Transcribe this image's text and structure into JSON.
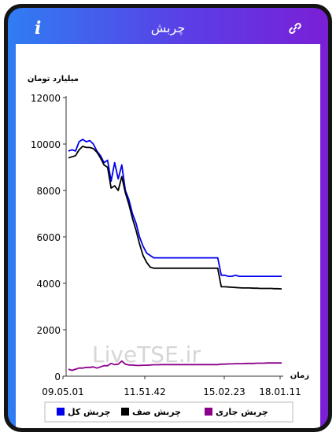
{
  "header": {
    "title": "چربش",
    "info_icon": "i",
    "link_icon": "link-icon"
  },
  "chart_data": {
    "type": "line",
    "unit_label": "میلیارد تومان",
    "xlabel": "زمان",
    "watermark": "LiveTSE.ir",
    "ylim": [
      0,
      12000
    ],
    "yticks": [
      "0",
      "2000",
      "4000",
      "6000",
      "8000",
      "10000",
      "12000"
    ],
    "xticks": [
      "09.05.01",
      "11.51.42",
      "15.02.23",
      "18.01.11"
    ],
    "series": [
      {
        "name": "چربش کل",
        "color": "#0000ee",
        "values": [
          9700,
          9750,
          9700,
          10100,
          10200,
          10100,
          10150,
          10000,
          9700,
          9500,
          9200,
          9300,
          8400,
          9200,
          8500,
          9100,
          8000,
          7600,
          7000,
          6600,
          6000,
          5600,
          5300,
          5200,
          5100,
          5100,
          5100,
          5100,
          5100,
          5100,
          5100,
          5100,
          5100,
          5100,
          5100,
          5100,
          5100,
          5100,
          5100,
          5100,
          5100,
          5100,
          5100,
          4350,
          4350,
          4300,
          4300,
          4350,
          4300,
          4300,
          4300,
          4300,
          4300,
          4300,
          4300,
          4300,
          4300,
          4300,
          4300,
          4300,
          4300
        ]
      },
      {
        "name": "چربش صف",
        "color": "#000000",
        "values": [
          9400,
          9450,
          9500,
          9750,
          9900,
          9850,
          9850,
          9800,
          9650,
          9400,
          9100,
          9000,
          8100,
          8200,
          8000,
          8600,
          7900,
          7400,
          6800,
          6300,
          5700,
          5200,
          4900,
          4700,
          4650,
          4650,
          4650,
          4650,
          4650,
          4650,
          4650,
          4650,
          4650,
          4650,
          4650,
          4650,
          4650,
          4650,
          4650,
          4650,
          4650,
          4650,
          4650,
          3850,
          3850,
          3840,
          3830,
          3820,
          3810,
          3800,
          3800,
          3800,
          3790,
          3790,
          3780,
          3780,
          3780,
          3780,
          3770,
          3770,
          3760
        ]
      },
      {
        "name": "چربش جاری",
        "color": "#8a008a",
        "values": [
          300,
          250,
          300,
          350,
          350,
          380,
          380,
          400,
          350,
          400,
          450,
          450,
          550,
          500,
          520,
          650,
          520,
          480,
          480,
          460,
          460,
          470,
          470,
          480,
          490,
          490,
          500,
          500,
          500,
          500,
          500,
          500,
          500,
          500,
          500,
          500,
          500,
          500,
          500,
          500,
          500,
          500,
          500,
          520,
          520,
          530,
          530,
          540,
          540,
          540,
          550,
          550,
          550,
          560,
          560,
          560,
          570,
          570,
          570,
          570,
          570
        ]
      }
    ],
    "legend_position": "bottom"
  }
}
